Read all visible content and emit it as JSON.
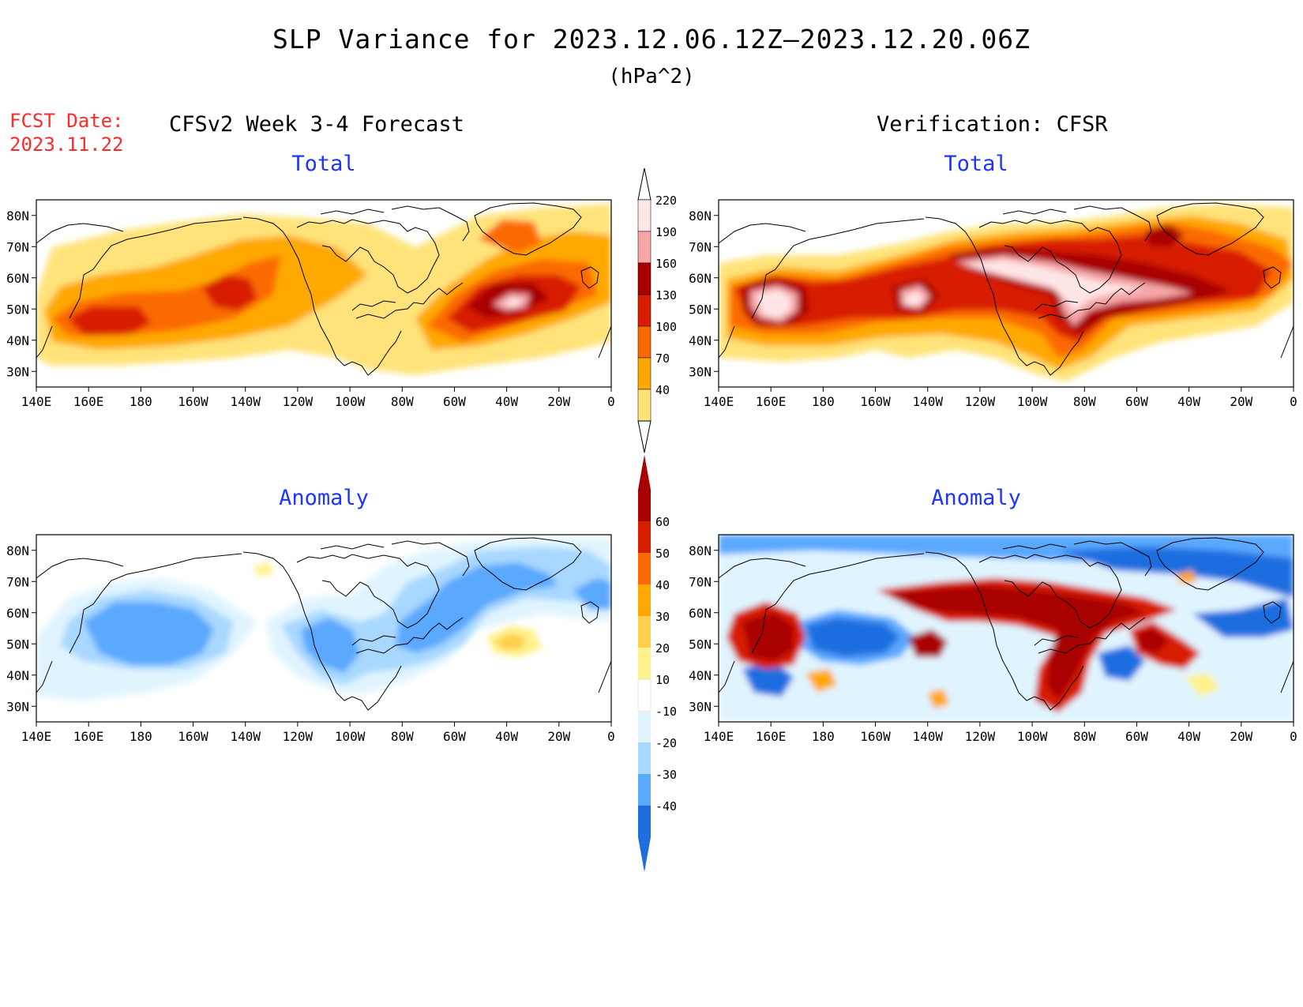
{
  "title": "SLP Variance for 2023.12.06.12Z—2023.12.20.06Z",
  "units": "(hPa^2)",
  "fcst_date": {
    "label": "FCST Date:",
    "value": "2023.11.22"
  },
  "left_header": "CFSv2 Week 3-4 Forecast",
  "right_header": "Verification: CFSR",
  "panels": {
    "fcst_total": {
      "title": "Total"
    },
    "verif_total": {
      "title": "Total"
    },
    "fcst_anom": {
      "title": "Anomaly"
    },
    "verif_anom": {
      "title": "Anomaly"
    }
  },
  "lat_ticks": [
    "80N",
    "70N",
    "60N",
    "50N",
    "40N",
    "30N"
  ],
  "lon_ticks": [
    "140E",
    "160E",
    "180",
    "160W",
    "140W",
    "120W",
    "100W",
    "80W",
    "60W",
    "40W",
    "20W",
    "0"
  ],
  "total_colorbar": {
    "labels": [
      "220",
      "190",
      "160",
      "130",
      "100",
      "70",
      "40"
    ],
    "colors": [
      "#ffe6e6",
      "#f7a6a8",
      "#a90000",
      "#d81c00",
      "#fb6a00",
      "#ffa800",
      "#ffe37a"
    ]
  },
  "anom_colorbar": {
    "labels": [
      "60",
      "50",
      "40",
      "30",
      "20",
      "10",
      "-10",
      "-20",
      "-30",
      "-40"
    ],
    "colors": [
      "#a90000",
      "#d81c00",
      "#fb6a00",
      "#ffa800",
      "#ffce4a",
      "#fff28c",
      "#ffffff",
      "#e0f4ff",
      "#a8d8ff",
      "#5aa8ff",
      "#1e6ee0"
    ]
  }
}
